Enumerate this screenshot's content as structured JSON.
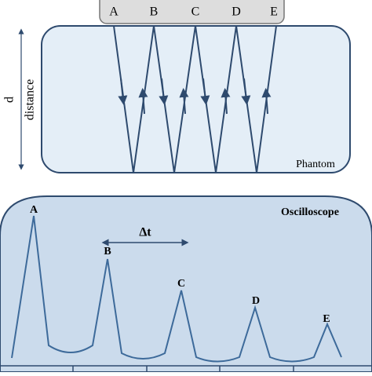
{
  "transducer": {
    "labels": [
      "A",
      "B",
      "C",
      "D",
      "E"
    ]
  },
  "phantom": {
    "d": "d",
    "distance": "distance",
    "label": "Phantom"
  },
  "oscilloscope": {
    "title": "Oscilloscope",
    "delta_t": "∆t",
    "peak_labels": [
      "A",
      "B",
      "C",
      "D",
      "E"
    ]
  }
}
